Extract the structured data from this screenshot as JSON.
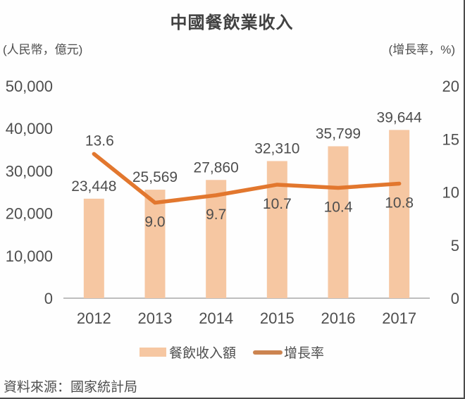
{
  "page": {
    "title": "中國餐飲業收入",
    "left_axis_unit": "(人民幣，億元)",
    "right_axis_unit": "(增長率，%)",
    "source": "資料來源：國家統計局"
  },
  "legend": {
    "bar_label": "餐飲收入額",
    "line_label": "增長率"
  },
  "colors": {
    "bar": "#F6C7A2",
    "line": "#E2772E",
    "legend_line": "#CC8450",
    "text": "#4E4E4E",
    "axis_line": "#A8A8A8"
  },
  "chart_data": {
    "type": "bar",
    "subtype": "bar+line combo, dual axis",
    "title": "中國餐飲業收入",
    "categories": [
      "2012",
      "2013",
      "2014",
      "2015",
      "2016",
      "2017"
    ],
    "series": [
      {
        "name": "餐飲收入額",
        "type": "bar",
        "axis": "left",
        "values": [
          23448,
          25569,
          27860,
          32310,
          35799,
          39644
        ],
        "labels": [
          "23,448",
          "25,569",
          "27,860",
          "32,310",
          "35,799",
          "39,644"
        ]
      },
      {
        "name": "增長率",
        "type": "line",
        "axis": "right",
        "values": [
          13.6,
          9.0,
          9.7,
          10.7,
          10.4,
          10.8
        ],
        "labels": [
          "13.6",
          "9.0",
          "9.7",
          "10.7",
          "10.4",
          "10.8"
        ]
      }
    ],
    "left_axis": {
      "unit": "(人民幣，億元)",
      "min": 0,
      "max": 50000,
      "tick_values": [
        50000,
        40000,
        30000,
        20000,
        10000,
        0
      ],
      "ticks": [
        "50,000",
        "40,000",
        "30,000",
        "20,000",
        "10,000",
        "0"
      ]
    },
    "right_axis": {
      "unit": "(增長率，%)",
      "min": 0,
      "max": 20,
      "tick_values": [
        20,
        15,
        10,
        5,
        0
      ],
      "ticks": [
        "20",
        "15",
        "10",
        "5",
        "0"
      ]
    },
    "grid": false,
    "legend_position": "bottom",
    "source": "資料來源：國家統計局"
  }
}
